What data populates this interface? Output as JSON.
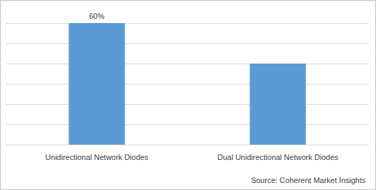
{
  "chart_data": {
    "type": "bar",
    "categories": [
      "Unidirectional Network Diodes",
      "Dual Unidirectional Network Diodes"
    ],
    "values": [
      60,
      40
    ],
    "value_labels": [
      "60%",
      null
    ],
    "color": "#5b9bd5",
    "ylim": [
      0,
      60
    ],
    "yticks": [
      0,
      10,
      20,
      30,
      40,
      50,
      60
    ],
    "grid": true,
    "tick_labels": "x",
    "source": "Source: Coherent Market Insights"
  }
}
